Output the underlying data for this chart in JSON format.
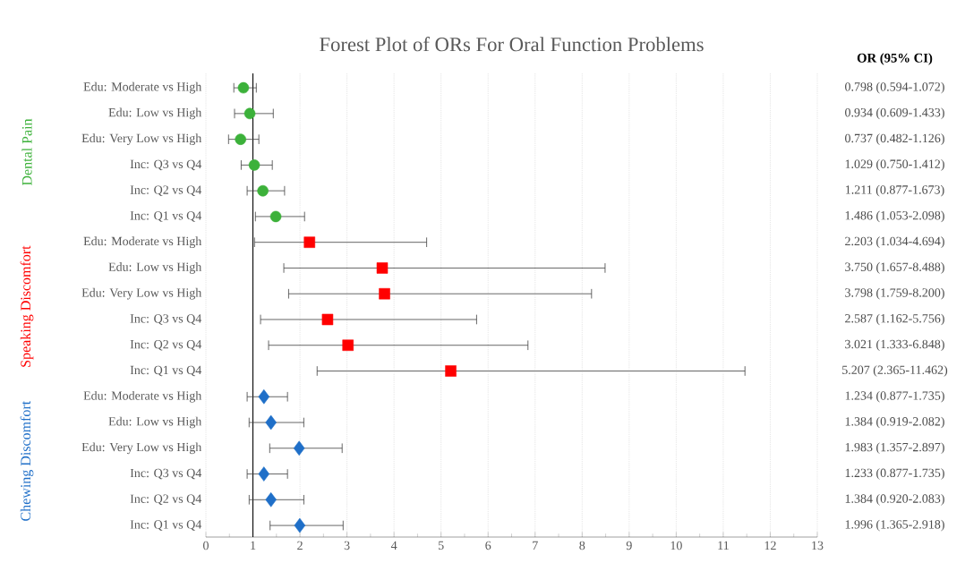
{
  "chart_data": [
    {
      "type": "scatter",
      "orientation": "horizontal",
      "title": "Forest Plot of ORs For Oral Function Problems",
      "categories": [
        "Edu: Moderate vs High",
        "Edu: Low vs High",
        "Edu: Very Low vs High",
        "Inc: Q3 vs Q4",
        "Inc: Q2 vs Q4",
        "Inc: Q1 vs Q4",
        "Edu: Moderate vs High",
        "Edu: Low vs High",
        "Edu: Very Low vs High",
        "Inc: Q3 vs Q4",
        "Inc: Q2 vs Q4",
        "Inc: Q1 vs Q4",
        "Edu: Moderate vs High",
        "Edu: Low vs High",
        "Edu: Very Low vs High",
        "Inc: Q3 vs Q4",
        "Inc: Q2 vs Q4",
        "Inc: Q1 vs Q4"
      ],
      "xlim": [
        0,
        13
      ],
      "xticks": [
        0,
        1,
        2,
        3,
        4,
        5,
        6,
        7,
        8,
        9,
        10,
        11,
        12,
        13
      ],
      "grid": "x",
      "ref_lines": [
        {
          "axis": "x",
          "value": 1,
          "color": "#000000"
        }
      ],
      "series": [
        {
          "name": "Dental Pain",
          "color": "#3cb13a",
          "marker": "circle",
          "values": [
            0.798,
            0.934,
            0.737,
            1.029,
            1.211,
            1.486,
            null,
            null,
            null,
            null,
            null,
            null,
            null,
            null,
            null,
            null,
            null,
            null
          ],
          "errors": [
            [
              0.594,
              1.072
            ],
            [
              0.609,
              1.433
            ],
            [
              0.482,
              1.126
            ],
            [
              0.75,
              1.412
            ],
            [
              0.877,
              1.673
            ],
            [
              1.053,
              2.098
            ],
            null,
            null,
            null,
            null,
            null,
            null,
            null,
            null,
            null,
            null,
            null,
            null
          ]
        },
        {
          "name": "Speaking Discomfort",
          "color": "#ff0000",
          "marker": "square",
          "values": [
            null,
            null,
            null,
            null,
            null,
            null,
            2.203,
            3.75,
            3.798,
            2.587,
            3.021,
            5.207,
            null,
            null,
            null,
            null,
            null,
            null
          ],
          "errors": [
            null,
            null,
            null,
            null,
            null,
            null,
            [
              1.034,
              4.694
            ],
            [
              1.657,
              8.488
            ],
            [
              1.759,
              8.2
            ],
            [
              1.162,
              5.756
            ],
            [
              1.333,
              6.848
            ],
            [
              2.365,
              11.462
            ],
            null,
            null,
            null,
            null,
            null,
            null
          ]
        },
        {
          "name": "Chewing Discomfort",
          "color": "#1f6fc8",
          "marker": "diamond",
          "values": [
            null,
            null,
            null,
            null,
            null,
            null,
            null,
            null,
            null,
            null,
            null,
            null,
            1.234,
            1.384,
            1.983,
            1.233,
            1.384,
            1.996
          ],
          "errors": [
            null,
            null,
            null,
            null,
            null,
            null,
            null,
            null,
            null,
            null,
            null,
            null,
            [
              0.877,
              1.735
            ],
            [
              0.919,
              2.082
            ],
            [
              1.357,
              2.897
            ],
            [
              0.877,
              1.735
            ],
            [
              0.92,
              2.083
            ],
            [
              1.365,
              2.918
            ]
          ]
        }
      ]
    },
    {
      "type": "other",
      "title": "OR (95% CI)",
      "annotations": [
        "0.798 (0.594-1.072)",
        "0.934 (0.609-1.433)",
        "0.737 (0.482-1.126)",
        "1.029 (0.750-1.412)",
        "1.211 (0.877-1.673)",
        "1.486 (1.053-2.098)",
        "2.203 (1.034-4.694)",
        "3.750 (1.657-8.488)",
        "3.798 (1.759-8.200)",
        "2.587 (1.162-5.756)",
        "3.021 (1.333-6.848)",
        "5.207 (2.365-11.462)",
        "1.234 (0.877-1.735)",
        "1.384 (0.919-2.082)",
        "1.983 (1.357-2.897)",
        "1.233 (0.877-1.735)",
        "1.384 (0.920-2.083)",
        "1.996 (1.365-2.918)"
      ]
    }
  ]
}
